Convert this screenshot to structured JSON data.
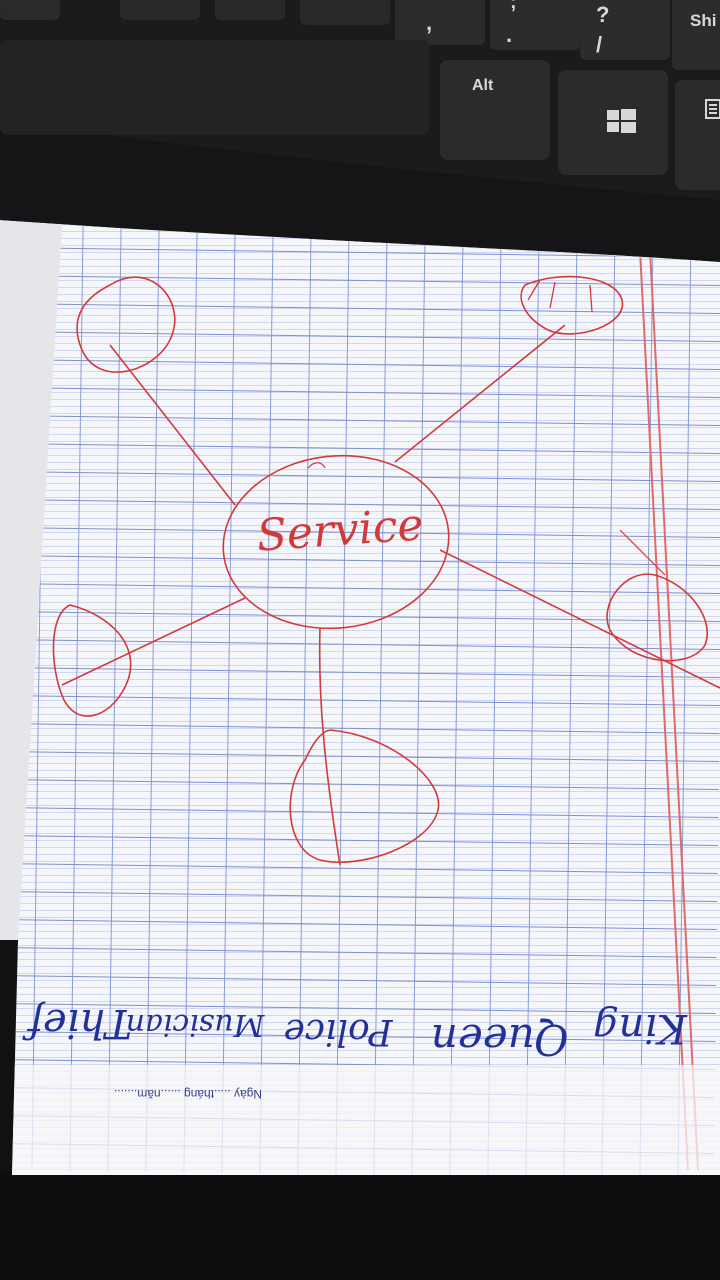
{
  "keyboard": {
    "keys": [
      {
        "name": "comma",
        "label": ","
      },
      {
        "name": "semicolon",
        "label": ";"
      },
      {
        "name": "period",
        "label": "."
      },
      {
        "name": "question",
        "label": "?"
      },
      {
        "name": "slash",
        "label": "/"
      },
      {
        "name": "shift",
        "label": "Shi"
      },
      {
        "name": "alt",
        "label": "Alt"
      }
    ]
  },
  "mindmap": {
    "center_word": "Service",
    "handwritten_words": [
      "King",
      "Queen",
      "Police",
      "Musician",
      "Thief"
    ]
  },
  "paper": {
    "footer": "Ngày .....tháng ......năm......."
  },
  "colors": {
    "red_ink": "#d23a3a",
    "blue_ink": "#24309a",
    "grid_line": "#8a9bd6",
    "keyboard": "#1b1b1d"
  }
}
